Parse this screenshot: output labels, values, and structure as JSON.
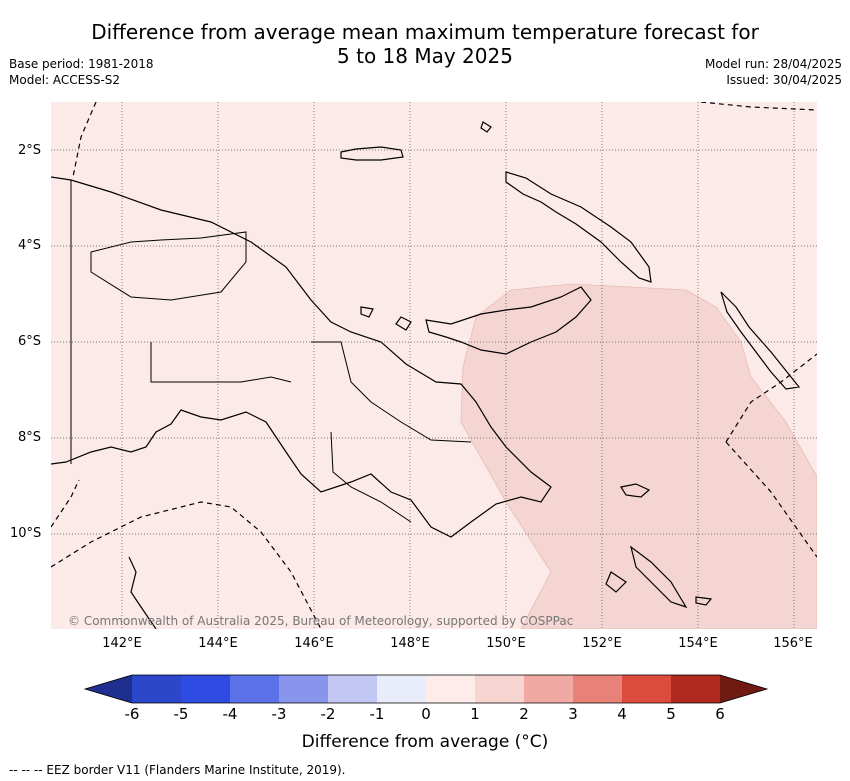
{
  "header": {
    "title_line1": "Difference from average mean maximum temperature forecast for",
    "title_line2": "5 to 18 May 2025",
    "base_period": "Base period: 1981-2018",
    "model": "Model: ACCESS-S2",
    "model_run": "Model run: 28/04/2025",
    "issued": "Issued: 30/04/2025"
  },
  "map": {
    "lat_labels": [
      "2°S",
      "4°S",
      "6°S",
      "8°S",
      "10°S"
    ],
    "lon_labels": [
      "142°E",
      "144°E",
      "146°E",
      "148°E",
      "150°E",
      "152°E",
      "154°E",
      "156°E"
    ],
    "copyright": "© Commonwealth of Australia 2025, Bureau of Meteorology, supported by COSPPac",
    "colors": {
      "anomaly_0_1": "#fbeae8",
      "anomaly_1_2": "#f5d5d1"
    }
  },
  "colorbar": {
    "ticks": [
      "-6",
      "-5",
      "-4",
      "-3",
      "-2",
      "-1",
      "0",
      "1",
      "2",
      "3",
      "4",
      "5",
      "6"
    ],
    "colors": [
      "#1f2f8f",
      "#2c47c9",
      "#2e4ce2",
      "#5b72e8",
      "#8796ec",
      "#c2c8f3",
      "#e9ecfa",
      "#fdecea",
      "#f6d4d0",
      "#f0aaa3",
      "#e88177",
      "#dc4b3d",
      "#b02a20",
      "#701a14"
    ],
    "label": "Difference from average (°C)"
  },
  "footer": {
    "eez_note": "-- -- -- EEZ border V11 (Flanders Marine Institute, 2019)."
  }
}
